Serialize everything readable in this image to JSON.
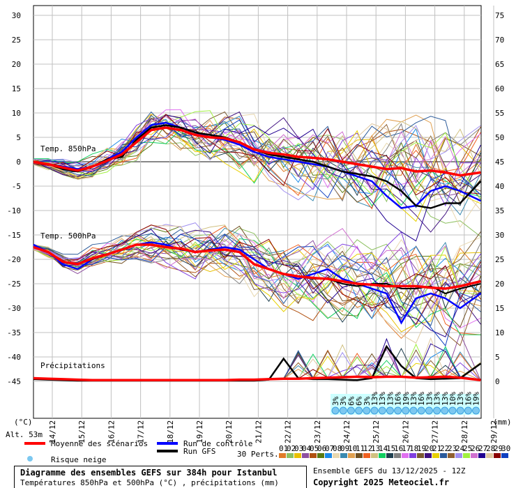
{
  "chart_data": {
    "type": "line",
    "title": "Diagramme des ensembles GEFS sur 384h pour Istanbul",
    "subtitle": "Températures 850hPa et 500hPa (°C) , précipitations (mm)",
    "run_label": "Ensemble GEFS du 13/12/2025 - 12Z",
    "copyright": "Copyright 2025 Meteociel.fr",
    "altitude": "Alt. 53m",
    "left_unit": "(°C)",
    "right_unit": "(mm)",
    "left_ticks": [
      30,
      25,
      20,
      15,
      10,
      5,
      0,
      -5,
      -10,
      -15,
      -20,
      -25,
      -30,
      -35,
      -40,
      -45
    ],
    "right_ticks": [
      75,
      70,
      65,
      60,
      55,
      50,
      45,
      40,
      35,
      30,
      25,
      20,
      15,
      10,
      5,
      0
    ],
    "ylim_left": [
      -45,
      30
    ],
    "dates": [
      "14/12",
      "15/12",
      "16/12",
      "17/12",
      "18/12",
      "19/12",
      "20/12",
      "21/12",
      "22/12",
      "23/12",
      "24/12",
      "25/12",
      "26/12",
      "27/12",
      "28/12",
      "29/12"
    ],
    "section_labels": [
      "Temp. 850hPa",
      "Temp. 500hPa",
      "Précipitations"
    ],
    "x_days": [
      0,
      0.5,
      1,
      1.5,
      2,
      2.5,
      3,
      3.5,
      4,
      4.5,
      5,
      5.5,
      6,
      6.5,
      7,
      7.5,
      8,
      8.5,
      9,
      9.5,
      10,
      10.5,
      11,
      11.5,
      12,
      12.5,
      13,
      13.5,
      14,
      14.5,
      15.2
    ],
    "mean_850": [
      0,
      -0.5,
      -1.2,
      -1.8,
      -1,
      0.2,
      1.5,
      4,
      6.5,
      7,
      6.5,
      5.5,
      5,
      4.8,
      4,
      2.5,
      1.8,
      1.5,
      1,
      0.8,
      0.5,
      0,
      -0.5,
      -1,
      -1.5,
      -1.3,
      -2,
      -1.8,
      -2.2,
      -2.8,
      -2.2
    ],
    "mean_500": [
      -17.5,
      -18.5,
      -20.5,
      -21,
      -19.8,
      -19,
      -18,
      -17,
      -17,
      -17.5,
      -17.8,
      -18.5,
      -18.2,
      -18,
      -18.5,
      -21,
      -22,
      -23,
      -23.5,
      -23.8,
      -24,
      -24.5,
      -25,
      -25.2,
      -25.5,
      -25.5,
      -25.5,
      -25.8,
      -26,
      -25.5,
      -24.5
    ],
    "gfs_850": [
      0,
      -0.5,
      -1.5,
      -2,
      -1,
      0.5,
      1,
      4.5,
      7,
      7.5,
      7,
      6,
      5.5,
      5,
      4,
      2.5,
      1.5,
      1,
      0.5,
      0,
      -1,
      -2,
      -2.5,
      -3,
      -4,
      -6,
      -9,
      -9.5,
      -8.5,
      -8.5,
      -4
    ],
    "control_850": [
      0,
      -0.5,
      -1,
      -1.5,
      -1,
      0.5,
      2,
      5,
      7.5,
      8,
      7,
      6,
      5,
      4.5,
      3.5,
      2,
      1,
      0.5,
      0,
      -0.5,
      -1,
      -2,
      -3,
      -4,
      -7,
      -9.5,
      -9,
      -6,
      -5,
      -6,
      -8
    ],
    "control_500": [
      -17,
      -18.5,
      -21,
      -22,
      -20,
      -19,
      -18,
      -17,
      -16.5,
      -17,
      -18,
      -18.5,
      -18,
      -17.5,
      -18,
      -20,
      -22,
      -23,
      -24,
      -23,
      -22,
      -24,
      -25,
      -26,
      -27,
      -33,
      -28,
      -27,
      -28,
      -30,
      -27
    ],
    "gfs_500": [
      -17.5,
      -18.5,
      -20.5,
      -21,
      -20,
      -19,
      -18,
      -17,
      -17,
      -17.5,
      -18,
      -18.5,
      -18,
      -18,
      -18.5,
      -21,
      -22,
      -23,
      -23.5,
      -24,
      -24,
      -25,
      -25.5,
      -25,
      -25,
      -26,
      -26,
      -25.5,
      -27,
      -26,
      -25
    ],
    "precip_mean_mm": [
      0.5,
      0.4,
      0.3,
      0.2,
      0.1,
      0.1,
      0.1,
      0.1,
      0.1,
      0.1,
      0.1,
      0.1,
      0.1,
      0.1,
      0.2,
      0.2,
      0.3,
      0.4,
      0.4,
      0.5,
      0.6,
      0.7,
      0.8,
      0.7,
      0.8,
      0.8,
      0.6,
      0.7,
      0.8,
      0.6,
      0.1
    ],
    "gfs_precip_mm": [
      0.3,
      0.2,
      0.1,
      0,
      0,
      0,
      0,
      0,
      0,
      0,
      0,
      0,
      0,
      0,
      0,
      0,
      0.2,
      4.5,
      0.5,
      0.3,
      0.3,
      0.2,
      0.1,
      0.5,
      7,
      3,
      0.5,
      0.3,
      0.4,
      0.5,
      3.5
    ],
    "snow_risk": [
      "3%",
      "3%",
      "6%",
      "6%",
      "3%",
      "13%",
      "13%",
      "13%",
      "16%",
      "19%",
      "13%",
      "16%",
      "13%",
      "13%",
      "13%",
      "10%",
      "13%",
      "16%",
      "19%"
    ],
    "legend": {
      "mean": "Moyenne des scénarios",
      "control": "Run de contrôle",
      "gfs": "Run GFS",
      "snow": "Risque neige",
      "perts": "30 Perts."
    },
    "colors": {
      "mean": "#ff0000",
      "control": "#0000ff",
      "gfs": "#000000",
      "grid": "#c0c0c0"
    },
    "pert_colors": [
      "#e07b28",
      "#8cc060",
      "#e8c000",
      "#8e4fa0",
      "#b05010",
      "#5a7a10",
      "#1a8ae8",
      "#e8d8b0",
      "#3a8ab0",
      "#e0a050",
      "#705020",
      "#f06020",
      "#d0c080",
      "#10d060",
      "#204050",
      "#808080",
      "#e070f0",
      "#8040e0",
      "#7a5a30",
      "#401080",
      "#e8d000",
      "#2a5a9a",
      "#906030",
      "#a090f0",
      "#a0f040",
      "#d070d0",
      "#200090",
      "#e0c8a0",
      "#8a0000",
      "#1040c0"
    ]
  }
}
